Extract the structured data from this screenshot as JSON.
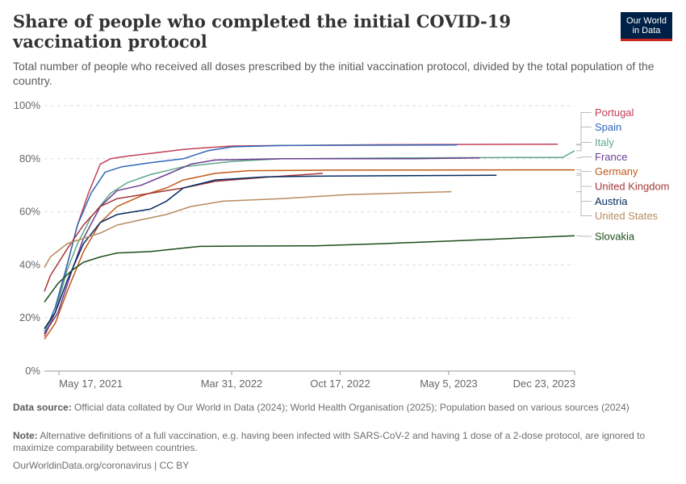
{
  "header": {
    "title": "Share of people who completed the initial COVID-19 vaccination protocol",
    "subtitle": "Total number of people who received all doses prescribed by the initial vaccination protocol, divided by the total population of the country.",
    "logo_line1": "Our World",
    "logo_line2": "in Data"
  },
  "footer": {
    "source_label": "Data source:",
    "source_text": "Official data collated by Our World in Data (2024); World Health Organisation (2025); Population based on various sources (2024)",
    "note_label": "Note:",
    "note_text": "Alternative definitions of a full vaccination, e.g. having been infected with SARS-CoV-2 and having 1 dose of a 2-dose protocol, are ignored to maximize comparability between countries.",
    "credit": "OurWorldinData.org/coronavirus | CC BY"
  },
  "chart_data": {
    "type": "line",
    "xlim": [
      "2021-04-20",
      "2023-12-23"
    ],
    "ylim": [
      0,
      100
    ],
    "y_ticks": [
      0,
      20,
      40,
      60,
      80,
      100
    ],
    "y_tick_labels": [
      "0%",
      "20%",
      "40%",
      "60%",
      "80%",
      "100%"
    ],
    "x_ticks": [
      "2021-05-17",
      "2022-03-31",
      "2022-10-17",
      "2023-05-05",
      "2023-12-23"
    ],
    "x_tick_labels": [
      "May 17, 2021",
      "Mar 31, 2022",
      "Oct 17, 2022",
      "May 5, 2023",
      "Dec 23, 2023"
    ],
    "grid": "horizontal dashed",
    "legend": "right, line-end labels",
    "series": [
      {
        "name": "Portugal",
        "color": "#c1405a",
        "points": [
          [
            "2021-04-20",
            13
          ],
          [
            "2021-05-10",
            22
          ],
          [
            "2021-06-01",
            40
          ],
          [
            "2021-06-20",
            55
          ],
          [
            "2021-07-10",
            67
          ],
          [
            "2021-08-01",
            78
          ],
          [
            "2021-08-20",
            80
          ],
          [
            "2021-09-20",
            81
          ],
          [
            "2021-11-01",
            82
          ],
          [
            "2022-01-01",
            83.5
          ],
          [
            "2022-02-01",
            84
          ],
          [
            "2022-04-01",
            84.8
          ],
          [
            "2022-07-01",
            85
          ],
          [
            "2023-01-01",
            85.3
          ],
          [
            "2023-11-22",
            85.5
          ]
        ]
      },
      {
        "name": "Spain",
        "color": "#2f68b8",
        "points": [
          [
            "2021-04-20",
            14
          ],
          [
            "2021-05-10",
            24
          ],
          [
            "2021-06-01",
            40
          ],
          [
            "2021-06-20",
            55
          ],
          [
            "2021-07-15",
            67
          ],
          [
            "2021-08-10",
            75
          ],
          [
            "2021-09-10",
            77
          ],
          [
            "2021-11-01",
            78.5
          ],
          [
            "2022-01-01",
            80
          ],
          [
            "2022-02-15",
            83
          ],
          [
            "2022-04-01",
            84.5
          ],
          [
            "2022-07-01",
            85
          ],
          [
            "2023-05-20",
            85.2
          ]
        ]
      },
      {
        "name": "Italy",
        "color": "#5ea888",
        "points": [
          [
            "2021-04-20",
            15
          ],
          [
            "2021-05-10",
            22
          ],
          [
            "2021-06-01",
            38
          ],
          [
            "2021-06-20",
            48
          ],
          [
            "2021-07-15",
            58
          ],
          [
            "2021-08-20",
            67
          ],
          [
            "2021-09-20",
            71
          ],
          [
            "2021-11-01",
            74
          ],
          [
            "2022-01-01",
            77
          ],
          [
            "2022-04-01",
            79
          ],
          [
            "2022-07-01",
            80
          ],
          [
            "2023-02-01",
            80.3
          ],
          [
            "2023-09-01",
            80.5
          ],
          [
            "2023-12-01",
            80.5
          ],
          [
            "2023-12-23",
            83
          ]
        ]
      },
      {
        "name": "France",
        "color": "#6c3e92",
        "points": [
          [
            "2021-04-20",
            14
          ],
          [
            "2021-05-15",
            22
          ],
          [
            "2021-06-10",
            38
          ],
          [
            "2021-07-01",
            50
          ],
          [
            "2021-08-01",
            62
          ],
          [
            "2021-09-01",
            68
          ],
          [
            "2021-10-15",
            70
          ],
          [
            "2021-12-01",
            74
          ],
          [
            "2022-01-15",
            78
          ],
          [
            "2022-03-01",
            79.5
          ],
          [
            "2022-07-01",
            80
          ],
          [
            "2023-03-01",
            80
          ],
          [
            "2023-07-01",
            80.3
          ]
        ]
      },
      {
        "name": "Germany",
        "color": "#c05917",
        "points": [
          [
            "2021-04-20",
            12
          ],
          [
            "2021-05-10",
            18
          ],
          [
            "2021-06-01",
            30
          ],
          [
            "2021-07-01",
            45
          ],
          [
            "2021-08-01",
            56
          ],
          [
            "2021-09-01",
            62
          ],
          [
            "2021-10-15",
            66
          ],
          [
            "2021-12-01",
            69
          ],
          [
            "2022-01-01",
            72
          ],
          [
            "2022-03-01",
            74.5
          ],
          [
            "2022-05-01",
            75.5
          ],
          [
            "2022-10-01",
            75.7
          ],
          [
            "2023-12-23",
            75.8
          ]
        ]
      },
      {
        "name": "United Kingdom",
        "color": "#a53838",
        "points": [
          [
            "2021-04-20",
            30
          ],
          [
            "2021-05-01",
            36
          ],
          [
            "2021-06-01",
            46
          ],
          [
            "2021-07-01",
            55
          ],
          [
            "2021-08-01",
            62
          ],
          [
            "2021-09-01",
            65
          ],
          [
            "2021-11-01",
            67
          ],
          [
            "2022-01-01",
            69
          ],
          [
            "2022-03-01",
            71.5
          ],
          [
            "2022-06-01",
            73
          ],
          [
            "2022-09-15",
            74.5
          ]
        ]
      },
      {
        "name": "Austria",
        "color": "#062b61",
        "points": [
          [
            "2021-04-20",
            16
          ],
          [
            "2021-05-10",
            22
          ],
          [
            "2021-06-01",
            34
          ],
          [
            "2021-07-01",
            48
          ],
          [
            "2021-08-01",
            56
          ],
          [
            "2021-09-01",
            59
          ],
          [
            "2021-11-01",
            61
          ],
          [
            "2021-12-01",
            64
          ],
          [
            "2022-01-01",
            69
          ],
          [
            "2022-03-01",
            72
          ],
          [
            "2022-06-01",
            73.2
          ],
          [
            "2022-10-01",
            73.5
          ],
          [
            "2023-08-01",
            73.8
          ]
        ]
      },
      {
        "name": "United States",
        "color": "#b88c60",
        "points": [
          [
            "2021-04-20",
            39
          ],
          [
            "2021-05-01",
            43
          ],
          [
            "2021-06-01",
            48
          ],
          [
            "2021-07-01",
            50
          ],
          [
            "2021-08-01",
            52
          ],
          [
            "2021-09-01",
            55
          ],
          [
            "2021-10-15",
            57
          ],
          [
            "2021-12-01",
            59
          ],
          [
            "2022-01-15",
            62
          ],
          [
            "2022-03-15",
            64
          ],
          [
            "2022-07-01",
            65
          ],
          [
            "2022-11-01",
            66.5
          ],
          [
            "2023-05-10",
            67.6
          ]
        ]
      },
      {
        "name": "Slovakia",
        "color": "#1b4d1b",
        "points": [
          [
            "2021-04-20",
            26
          ],
          [
            "2021-05-15",
            33
          ],
          [
            "2021-06-10",
            38
          ],
          [
            "2021-07-01",
            41
          ],
          [
            "2021-08-01",
            43
          ],
          [
            "2021-09-01",
            44.5
          ],
          [
            "2021-11-01",
            45
          ],
          [
            "2021-12-15",
            46
          ],
          [
            "2022-02-01",
            47
          ],
          [
            "2022-05-01",
            47.1
          ],
          [
            "2022-09-01",
            47.2
          ],
          [
            "2023-01-01",
            48
          ],
          [
            "2023-06-01",
            49.2
          ],
          [
            "2023-12-23",
            51
          ]
        ]
      }
    ]
  }
}
